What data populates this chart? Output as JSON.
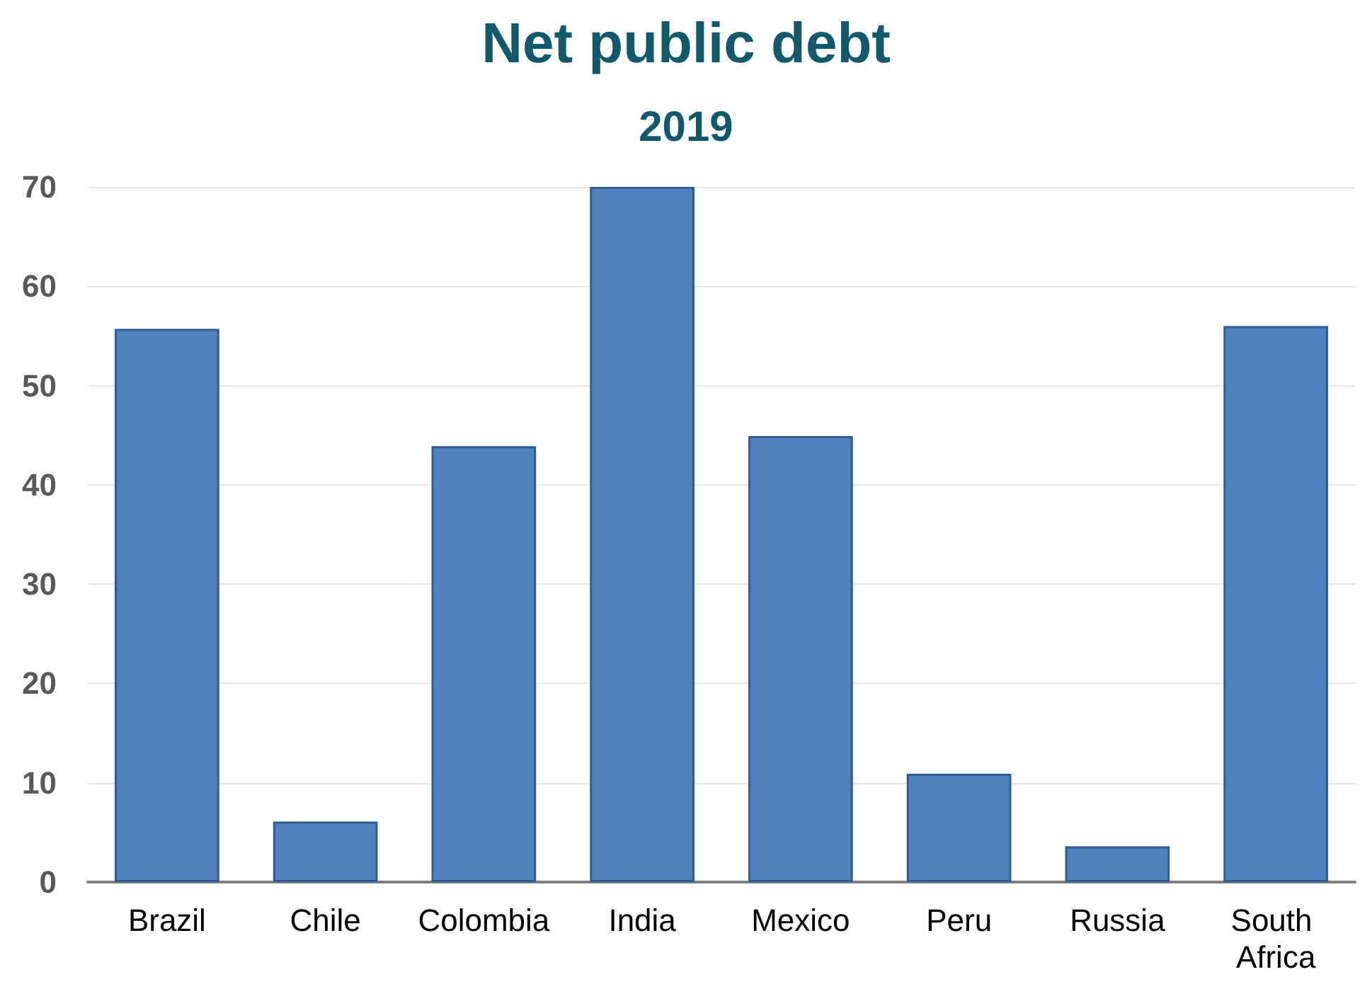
{
  "chart_data": {
    "type": "bar",
    "title": "Net public debt",
    "subtitle": "2019",
    "categories": [
      "Brazil",
      "Chile",
      "Colombia",
      "India",
      "Mexico",
      "Peru",
      "Russia",
      "South Africa"
    ],
    "values": [
      55.7,
      6.1,
      43.9,
      70,
      44.9,
      10.9,
      3.6,
      56
    ],
    "color": "#4f81bd",
    "ylim": [
      0,
      70
    ],
    "yticks": [
      0,
      10,
      20,
      30,
      40,
      50,
      60,
      70
    ],
    "grid": "y"
  }
}
